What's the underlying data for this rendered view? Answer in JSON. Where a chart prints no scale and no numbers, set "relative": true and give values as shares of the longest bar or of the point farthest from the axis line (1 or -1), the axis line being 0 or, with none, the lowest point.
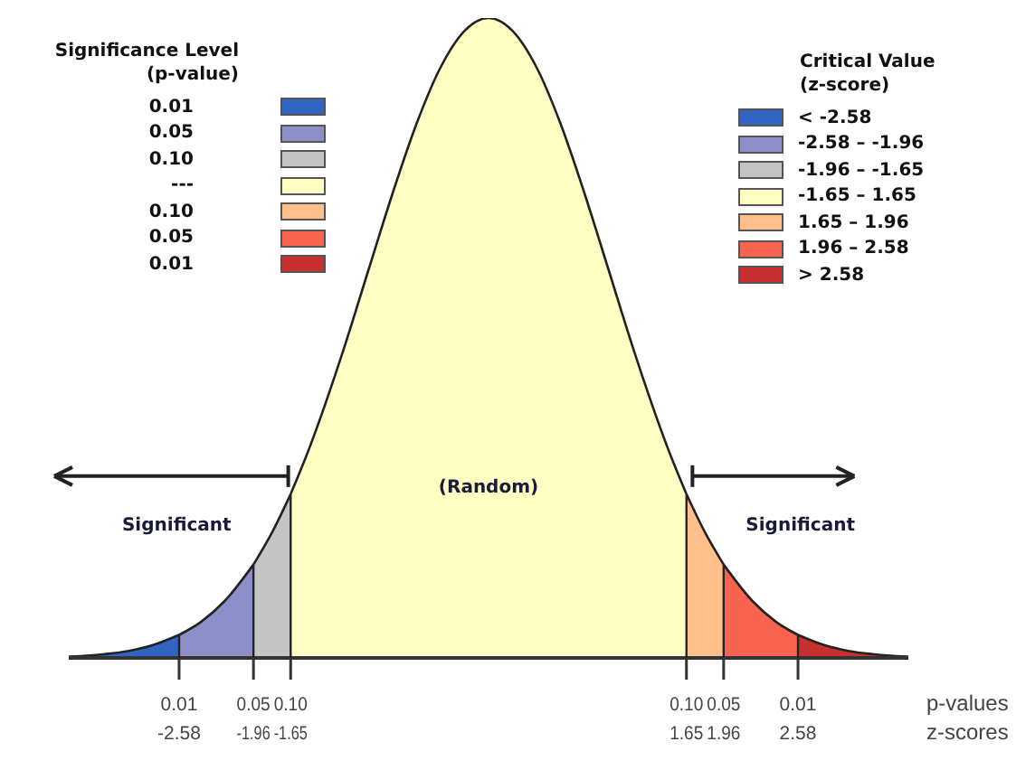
{
  "chart_data": {
    "type": "area",
    "relative": true,
    "xlim": [
      -3.5,
      3.5
    ],
    "xticks": [
      -2.58,
      -1.96,
      -1.65,
      1.65,
      1.96,
      2.58
    ],
    "xlabel": "z-scores",
    "legend": "top right",
    "legend_title": "Critical Value\n(z-score)",
    "series": [
      {
        "name": "< -2.58",
        "color": "#3264c4",
        "x": [
          -3.5,
          -3.2,
          -3.0,
          -2.8,
          -2.58
        ],
        "values": [
          0.002,
          0.006,
          0.011,
          0.02,
          0.036
        ]
      },
      {
        "name": "-2.58 – -1.96",
        "color": "#8c8ec8",
        "x": [
          -2.58,
          -2.4,
          -2.2,
          -1.96
        ],
        "values": [
          0.036,
          0.056,
          0.089,
          0.146
        ]
      },
      {
        "name": "-1.96 – -1.65",
        "color": "#c4c4c4",
        "x": [
          -1.96,
          -1.8,
          -1.65
        ],
        "values": [
          0.146,
          0.198,
          0.256
        ]
      },
      {
        "name": "-1.65 – 1.65",
        "color": "#ffffc4",
        "x": [
          -1.65,
          -1.5,
          -1.2,
          -1.0,
          -0.8,
          -0.6,
          -0.4,
          -0.2,
          0,
          0.2,
          0.4,
          0.6,
          0.8,
          1.0,
          1.2,
          1.5,
          1.65
        ],
        "values": [
          0.256,
          0.325,
          0.487,
          0.607,
          0.726,
          0.835,
          0.923,
          0.98,
          1,
          0.98,
          0.923,
          0.835,
          0.726,
          0.607,
          0.487,
          0.325,
          0.256
        ]
      },
      {
        "name": "1.65 – 1.96",
        "color": "#ffc08c",
        "x": [
          1.65,
          1.8,
          1.96
        ],
        "values": [
          0.256,
          0.198,
          0.146
        ]
      },
      {
        "name": "1.96 – 2.58",
        "color": "#f86450",
        "x": [
          1.96,
          2.2,
          2.4,
          2.58
        ],
        "values": [
          0.146,
          0.089,
          0.056,
          0.036
        ]
      },
      {
        "name": "> 2.58",
        "color": "#c83030",
        "x": [
          2.58,
          2.8,
          3.0,
          3.2,
          3.5
        ],
        "values": [
          0.036,
          0.02,
          0.011,
          0.006,
          0.002
        ]
      }
    ],
    "annotations": [
      "Significance Level\n(p-value)",
      "0.01",
      "0.05",
      "0.10",
      "---",
      "0.10",
      "0.05",
      "0.01",
      "(Random)",
      "Significant",
      "Significant",
      "p-values",
      {
        "text": "0.01",
        "x": -2.58,
        "y": 0
      },
      {
        "text": "0.05",
        "x": -1.96,
        "y": 0
      },
      {
        "text": "0.10",
        "x": -1.65,
        "y": 0
      },
      {
        "text": "0.10",
        "x": 1.65,
        "y": 0
      },
      {
        "text": "0.05",
        "x": 1.96,
        "y": 0
      },
      {
        "text": "0.01",
        "x": 2.58,
        "y": 0
      }
    ]
  }
}
